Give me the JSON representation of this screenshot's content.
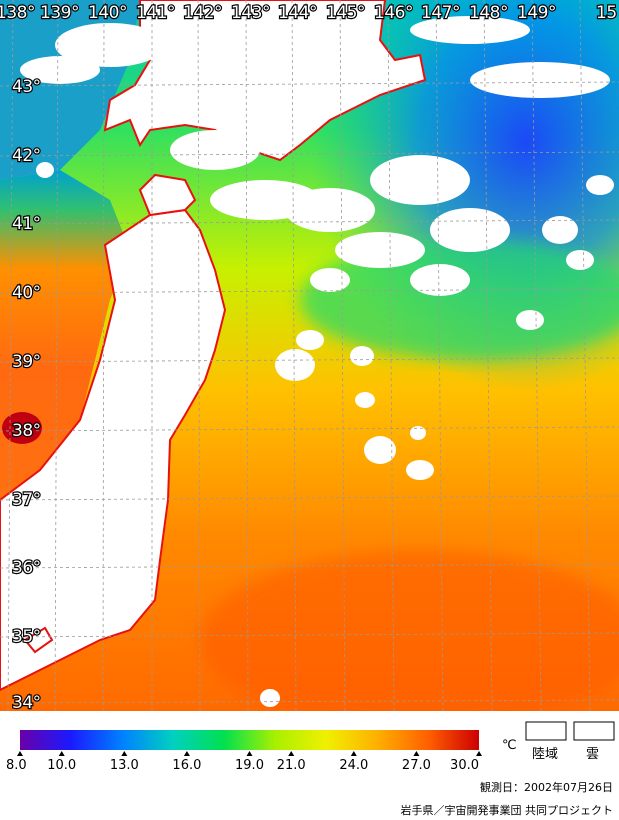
{
  "map": {
    "longitude_labels": [
      "138°",
      "139°",
      "140°",
      "141°",
      "142°",
      "143°",
      "144°",
      "145°",
      "146°",
      "147°",
      "148°",
      "149°",
      "15"
    ],
    "latitude_labels": [
      "43°",
      "42°",
      "41°",
      "40°",
      "39°",
      "38°",
      "37°",
      "36°",
      "35°",
      "34°"
    ]
  },
  "colorbar": {
    "min": 8.0,
    "max": 30.0,
    "tick_values": [
      8.0,
      10.0,
      13.0,
      16.0,
      19.0,
      21.0,
      24.0,
      27.0,
      30.0
    ],
    "tick_labels": [
      "8.0",
      "10.0",
      "13.0",
      "16.0",
      "19.0",
      "21.0",
      "24.0",
      "27.0",
      "30.0"
    ],
    "unit": "℃",
    "stops": [
      "#6a00a8",
      "#1a1aff",
      "#0080ff",
      "#00d0c0",
      "#00e050",
      "#a8f000",
      "#f0f000",
      "#ffb000",
      "#ff6000",
      "#cc0000"
    ]
  },
  "legend_boxes": [
    {
      "label": "陸域"
    },
    {
      "label": "雲"
    }
  ],
  "colors": {
    "coastline": "#e81010",
    "land": "#ffffff",
    "cloud": "#ffffff"
  },
  "footer": {
    "observation_date": "観測日：2002年07月26日",
    "credit": "岩手県／宇宙開発事業団 共同プロジェクト"
  }
}
